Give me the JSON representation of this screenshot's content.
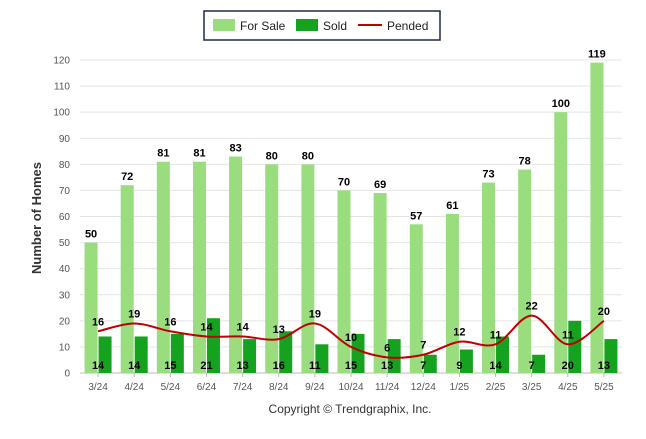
{
  "chart_data": {
    "type": "bar",
    "ylabel": "Number of Homes",
    "ylim": [
      0,
      120
    ],
    "yticks": [
      0,
      10,
      20,
      30,
      40,
      50,
      60,
      70,
      80,
      90,
      100,
      110,
      120
    ],
    "categories": [
      "3/24",
      "4/24",
      "5/24",
      "6/24",
      "7/24",
      "8/24",
      "9/24",
      "10/24",
      "11/24",
      "12/24",
      "1/25",
      "2/25",
      "3/25",
      "4/25",
      "5/25"
    ],
    "series": [
      {
        "name": "For Sale",
        "kind": "bar",
        "color": "#99dd7f",
        "values": [
          50,
          72,
          81,
          81,
          83,
          80,
          80,
          70,
          69,
          57,
          61,
          73,
          78,
          100,
          119
        ]
      },
      {
        "name": "Sold",
        "kind": "bar",
        "color": "#14a21f",
        "values": [
          14,
          14,
          15,
          21,
          13,
          16,
          11,
          15,
          13,
          7,
          9,
          14,
          7,
          20,
          13
        ]
      },
      {
        "name": "Pended",
        "kind": "line",
        "color": "#c00000",
        "values": [
          16,
          19,
          16,
          14,
          14,
          13,
          19,
          10,
          6,
          7,
          12,
          11,
          22,
          11,
          20
        ]
      }
    ],
    "grid": true,
    "legend": "top-center"
  },
  "footer": {
    "copyright": "Copyright © Trendgraphix, Inc."
  }
}
